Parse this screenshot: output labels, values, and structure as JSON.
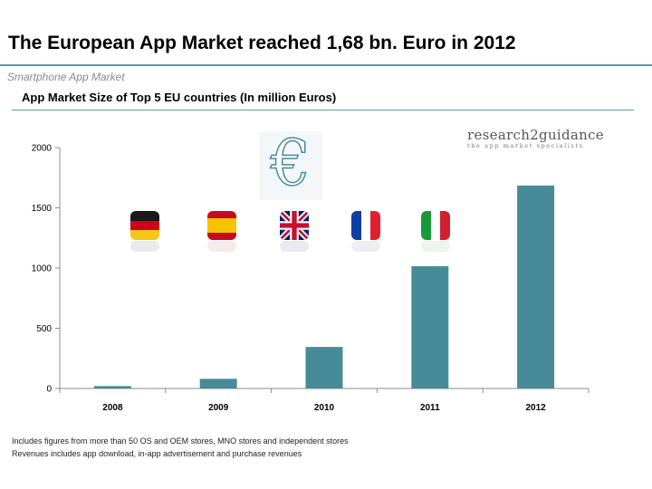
{
  "header": {
    "title": "The European App Market reached 1,68 bn. Euro in 2012",
    "subtitle": "Smartphone App Market"
  },
  "logo": {
    "name": "research2guidance",
    "tagline": "the app market specialists"
  },
  "icons": [
    "euro-icon",
    "germany-flag-icon",
    "spain-flag-icon",
    "uk-flag-icon",
    "france-flag-icon",
    "italy-flag-icon"
  ],
  "colors": {
    "bar": "#478b98",
    "accent": "#5a9aa8"
  },
  "chart_data": {
    "type": "bar",
    "title": "App Market Size of Top 5 EU countries (In million Euros)",
    "categories": [
      "2008",
      "2009",
      "2010",
      "2011",
      "2012"
    ],
    "values": [
      20,
      80,
      345,
      1015,
      1685
    ],
    "ylim": [
      0,
      2000
    ],
    "yticks": [
      0,
      500,
      1000,
      1500,
      2000
    ],
    "grid": false,
    "legend": "none"
  },
  "notes": [
    "Includes figures from more than 50  OS and OEM stores, MNO stores and independent stores",
    "Revenues includes app download, in-app advertisement and purchase revenues"
  ]
}
